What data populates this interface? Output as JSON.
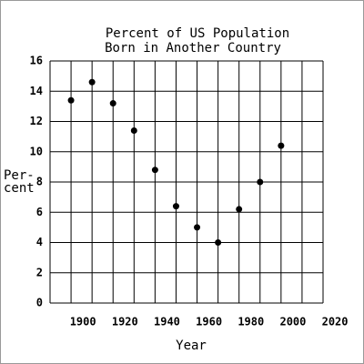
{
  "chart_data": {
    "type": "scatter",
    "title": [
      "Percent of US Population",
      "Born in Another Country"
    ],
    "xlabel": "Year",
    "ylabel": [
      "Per-",
      "cent"
    ],
    "x": [
      1890,
      1900,
      1910,
      1920,
      1930,
      1940,
      1950,
      1960,
      1970,
      1980,
      1990
    ],
    "values": [
      13.4,
      14.6,
      13.2,
      11.4,
      8.8,
      6.4,
      5.0,
      4.0,
      6.2,
      8.0,
      10.4
    ],
    "color": "#000000",
    "xlim": [
      1880,
      2010
    ],
    "xticks": [
      1900,
      1920,
      1940,
      1960,
      1980,
      2000,
      2020
    ],
    "ylim": [
      0,
      16
    ],
    "yticks": [
      0,
      2,
      4,
      6,
      8,
      10,
      12,
      14,
      16
    ],
    "grid": true
  }
}
